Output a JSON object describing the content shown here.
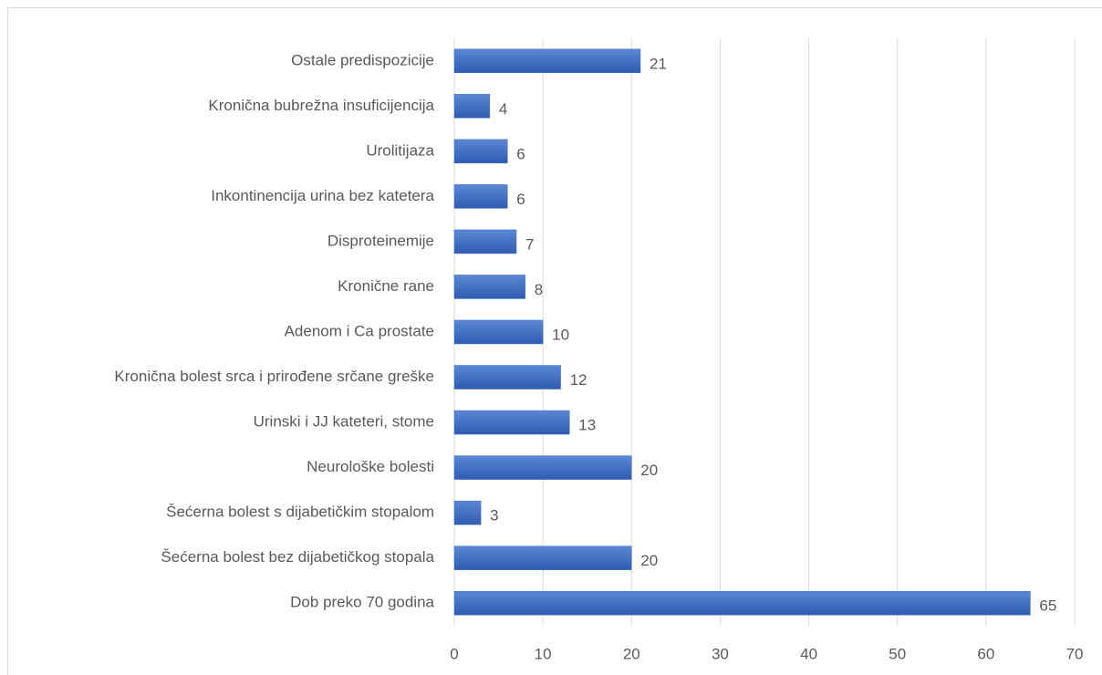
{
  "chart_data": {
    "type": "bar",
    "orientation": "horizontal",
    "categories": [
      "Ostale predispozicije",
      "Kronična bubrežna insuficijencija",
      "Urolitijaza",
      "Inkontinencija urina bez katetera",
      "Disproteinemije",
      "Kronične rane",
      "Adenom i Ca prostate",
      "Kronična bolest srca i prirođene srčane greške",
      "Urinski i JJ kateteri, stome",
      "Neurološke bolesti",
      "Šećerna bolest s dijabetičkim stopalom",
      "Šećerna bolest bez dijabetičkog stopala",
      "Dob preko 70 godina"
    ],
    "values": [
      21,
      4,
      6,
      6,
      7,
      8,
      10,
      12,
      13,
      20,
      3,
      20,
      65
    ],
    "color": "#4472c4",
    "xlim": [
      0,
      70
    ],
    "xticks": [
      0,
      10,
      20,
      30,
      40,
      50,
      60,
      70
    ],
    "grid": true
  }
}
